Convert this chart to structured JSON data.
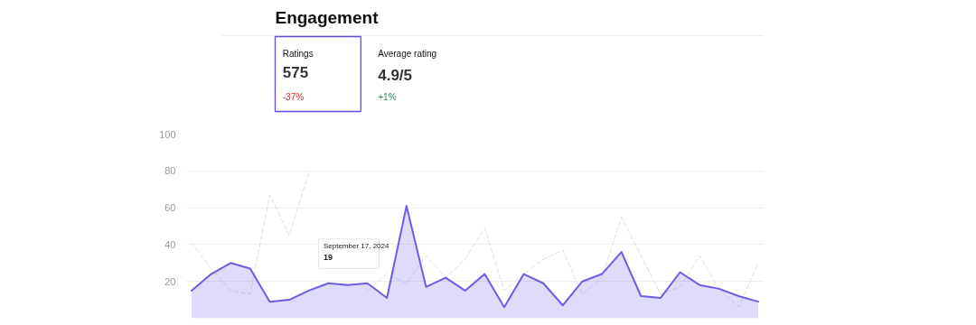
{
  "chart_data": [
    {
      "type": "other",
      "title": "Engagement",
      "annotations": [
        "Ratings",
        "575",
        "-37%",
        "Average rating",
        "4.9/5",
        "+1%"
      ]
    },
    {
      "type": "area",
      "categories": [
        null,
        null,
        null,
        null,
        null,
        null,
        null,
        null,
        null,
        null,
        null,
        null,
        null,
        null,
        null,
        null,
        null,
        null,
        null,
        null,
        null,
        null,
        null,
        null,
        null,
        null,
        null,
        null,
        null,
        null
      ],
      "series": [
        {
          "type": "line",
          "color": "#dddddd",
          "line_style": "dashed",
          "values": [
            41,
            27,
            15,
            13,
            67,
            45,
            79,
            null,
            null,
            15,
            24,
            19,
            34,
            22,
            32,
            49,
            15,
            24,
            32,
            37,
            13,
            22,
            55,
            34,
            13,
            17,
            34,
            16,
            6,
            30
          ]
        },
        {
          "type": "area",
          "color": "#6c5ce7",
          "values": [
            15,
            24,
            30,
            27,
            9,
            10,
            15,
            19,
            18,
            19,
            11,
            61,
            17,
            22,
            15,
            24,
            6,
            24,
            19,
            7,
            20,
            24,
            36,
            12,
            11,
            25,
            18,
            16,
            12,
            9
          ]
        }
      ],
      "ylim": [
        0,
        100
      ],
      "yticks": [
        20,
        40,
        60,
        80,
        100
      ],
      "grid": "y",
      "tick_labels": "y",
      "marker": "none",
      "annotations": [
        "September 17, 2024",
        "19"
      ]
    }
  ]
}
